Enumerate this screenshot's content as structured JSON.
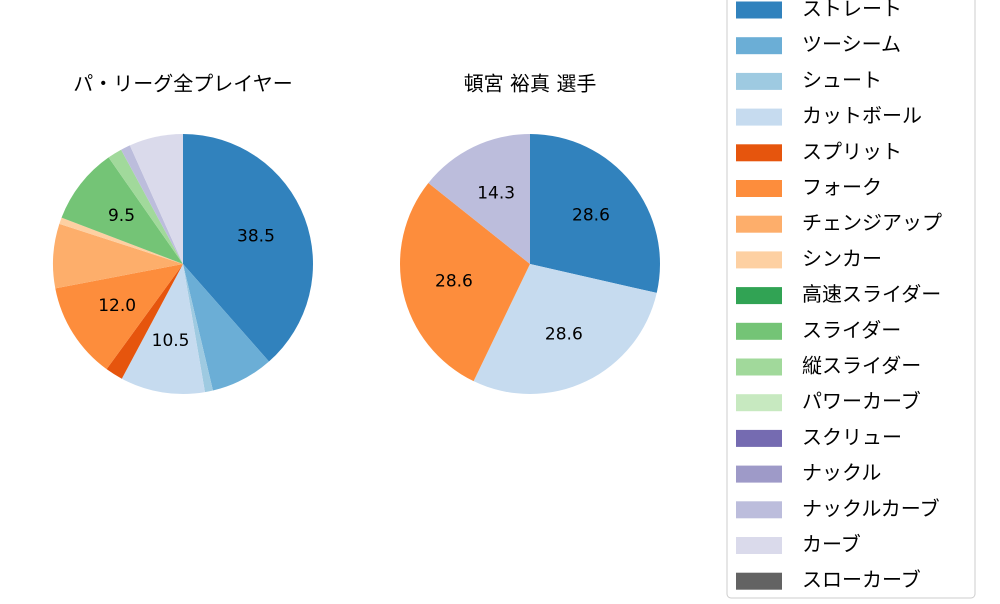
{
  "chart_data": [
    {
      "type": "pie",
      "title": "パ・リーグ全プレイヤー",
      "values": [
        38.5,
        7.8,
        1.0,
        10.5,
        2.2,
        12.0,
        8.0,
        0.8,
        0,
        9.5,
        1.8,
        0,
        0,
        0,
        1.2,
        6.7,
        0
      ],
      "value_labels": [
        "38.5",
        null,
        null,
        "10.5",
        null,
        "12.0",
        null,
        null,
        null,
        "9.5",
        null,
        null,
        null,
        null,
        null,
        null,
        null
      ]
    },
    {
      "type": "pie",
      "title": "頓宮 裕真  選手",
      "values": [
        28.6,
        0,
        0,
        28.6,
        0,
        28.6,
        0,
        0,
        0,
        0,
        0,
        0,
        0,
        0,
        14.3,
        0,
        0
      ],
      "value_labels": [
        "28.6",
        null,
        null,
        "28.6",
        null,
        "28.6",
        null,
        null,
        null,
        null,
        null,
        null,
        null,
        null,
        "14.3",
        null,
        null
      ]
    }
  ],
  "legend": {
    "labels": [
      "ストレート",
      "ツーシーム",
      "シュート",
      "カットボール",
      "スプリット",
      "フォーク",
      "チェンジアップ",
      "シンカー",
      "高速スライダー",
      "スライダー",
      "縦スライダー",
      "パワーカーブ",
      "スクリュー",
      "ナックル",
      "ナックルカーブ",
      "カーブ",
      "スローカーブ"
    ],
    "colors": [
      "#3182bd",
      "#6baed6",
      "#9ecae1",
      "#c6dbef",
      "#e6550d",
      "#fd8d3c",
      "#fdae6b",
      "#fdd0a2",
      "#31a354",
      "#74c476",
      "#a1d99b",
      "#c7e9c0",
      "#756bb1",
      "#9e9ac8",
      "#bcbddc",
      "#dadaeb",
      "#636363"
    ]
  }
}
